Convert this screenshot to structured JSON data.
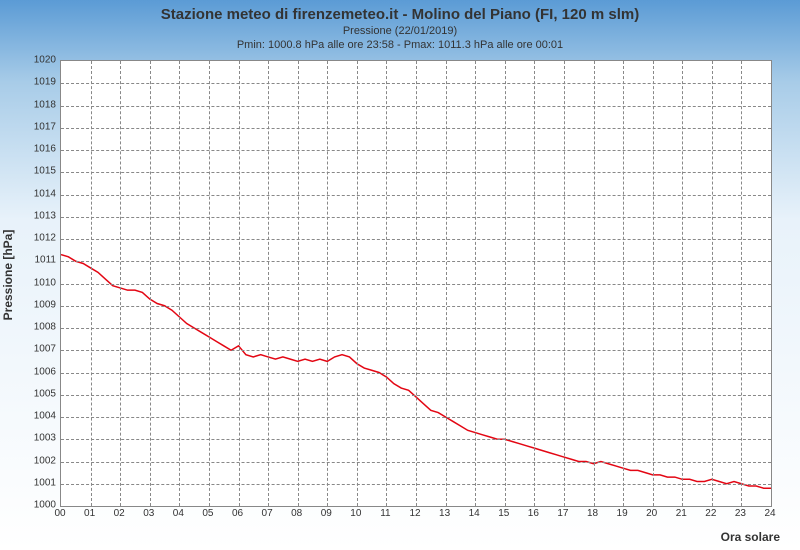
{
  "chart": {
    "type": "line",
    "title": "Stazione meteo di firenzemeteo.it - Molino del Piano (FI, 120 m slm)",
    "subtitle1": "Pressione (22/01/2019)",
    "subtitle2": "Pmin: 1000.8 hPa alle ore 23:58 - Pmax: 1011.3 hPa alle ore 00:01",
    "ylabel": "Pressione [hPa]",
    "xlabel": "Ora solare",
    "xlim": [
      0,
      24
    ],
    "ylim": [
      1000,
      1020
    ],
    "xtick_step": 1,
    "ytick_step": 1,
    "xticks": [
      "00",
      "01",
      "02",
      "03",
      "04",
      "05",
      "06",
      "07",
      "08",
      "09",
      "10",
      "11",
      "12",
      "13",
      "14",
      "15",
      "16",
      "17",
      "18",
      "19",
      "20",
      "21",
      "22",
      "23",
      "24"
    ],
    "yticks": [
      1000,
      1001,
      1002,
      1003,
      1004,
      1005,
      1006,
      1007,
      1008,
      1009,
      1010,
      1011,
      1012,
      1013,
      1014,
      1015,
      1016,
      1017,
      1018,
      1019,
      1020
    ],
    "background_gradient": [
      "#5b9bd5",
      "#a8cce8",
      "#e8f2fa",
      "#ffffff"
    ],
    "plot_bgcolor": "#ffffff",
    "grid_color": "#888888",
    "grid_dash": true,
    "line_color": "#e30613",
    "line_width": 1.5,
    "title_fontsize": 15,
    "subtitle_fontsize": 11,
    "label_fontsize": 12,
    "tick_fontsize": 10,
    "series": {
      "x": [
        0,
        0.25,
        0.5,
        0.75,
        1,
        1.25,
        1.5,
        1.75,
        2,
        2.25,
        2.5,
        2.75,
        3,
        3.25,
        3.5,
        3.75,
        4,
        4.25,
        4.5,
        4.75,
        5,
        5.25,
        5.5,
        5.75,
        6,
        6.25,
        6.5,
        6.75,
        7,
        7.25,
        7.5,
        7.75,
        8,
        8.25,
        8.5,
        8.75,
        9,
        9.25,
        9.5,
        9.75,
        10,
        10.25,
        10.5,
        10.75,
        11,
        11.25,
        11.5,
        11.75,
        12,
        12.25,
        12.5,
        12.75,
        13,
        13.25,
        13.5,
        13.75,
        14,
        14.25,
        14.5,
        14.75,
        15,
        15.25,
        15.5,
        15.75,
        16,
        16.25,
        16.5,
        16.75,
        17,
        17.25,
        17.5,
        17.75,
        18,
        18.25,
        18.5,
        18.75,
        19,
        19.25,
        19.5,
        19.75,
        20,
        20.25,
        20.5,
        20.75,
        21,
        21.25,
        21.5,
        21.75,
        22,
        22.25,
        22.5,
        22.75,
        23,
        23.25,
        23.5,
        23.75,
        24
      ],
      "y": [
        1011.3,
        1011.2,
        1011.0,
        1010.9,
        1010.7,
        1010.5,
        1010.2,
        1009.9,
        1009.8,
        1009.7,
        1009.7,
        1009.6,
        1009.3,
        1009.1,
        1009.0,
        1008.8,
        1008.5,
        1008.2,
        1008.0,
        1007.8,
        1007.6,
        1007.4,
        1007.2,
        1007.0,
        1007.2,
        1006.8,
        1006.7,
        1006.8,
        1006.7,
        1006.6,
        1006.7,
        1006.6,
        1006.5,
        1006.6,
        1006.5,
        1006.6,
        1006.5,
        1006.7,
        1006.8,
        1006.7,
        1006.4,
        1006.2,
        1006.1,
        1006.0,
        1005.8,
        1005.5,
        1005.3,
        1005.2,
        1004.9,
        1004.6,
        1004.3,
        1004.2,
        1004.0,
        1003.8,
        1003.6,
        1003.4,
        1003.3,
        1003.2,
        1003.1,
        1003.0,
        1003.0,
        1002.9,
        1002.8,
        1002.7,
        1002.6,
        1002.5,
        1002.4,
        1002.3,
        1002.2,
        1002.1,
        1002.0,
        1002.0,
        1001.9,
        1002.0,
        1001.9,
        1001.8,
        1001.7,
        1001.6,
        1001.6,
        1001.5,
        1001.4,
        1001.4,
        1001.3,
        1001.3,
        1001.2,
        1001.2,
        1001.1,
        1001.1,
        1001.2,
        1001.1,
        1001.0,
        1001.1,
        1001.0,
        1000.9,
        1000.9,
        1000.8,
        1000.8
      ]
    }
  }
}
